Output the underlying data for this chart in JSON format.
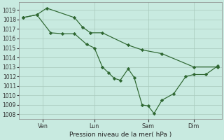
{
  "background_color": "#c8eae0",
  "grid_color": "#a8c8bc",
  "line_color": "#2d6630",
  "marker_color": "#2d6630",
  "xlabel_text": "Pression niveau de la mer( hPa )",
  "ylim": [
    1007.5,
    1019.8
  ],
  "yticks": [
    1008,
    1009,
    1010,
    1011,
    1012,
    1013,
    1014,
    1015,
    1016,
    1017,
    1018,
    1019
  ],
  "xtick_labels": [
    "Ven",
    "Lun",
    "Sam",
    "Dim"
  ],
  "xtick_positions": [
    0.12,
    0.38,
    0.65,
    0.88
  ],
  "series1_x": [
    0.02,
    0.09,
    0.14,
    0.28,
    0.32,
    0.36,
    0.42,
    0.55,
    0.62,
    0.72,
    0.88,
    1.0
  ],
  "series1_y": [
    1018.2,
    1018.5,
    1019.2,
    1018.2,
    1017.2,
    1016.6,
    1016.6,
    1015.3,
    1014.8,
    1014.4,
    1013.0,
    1013.0
  ],
  "series2_x": [
    0.02,
    0.09,
    0.16,
    0.22,
    0.28,
    0.34,
    0.38,
    0.42,
    0.45,
    0.48,
    0.51,
    0.55,
    0.58,
    0.62,
    0.65,
    0.68,
    0.72,
    0.78,
    0.84,
    0.88,
    0.94,
    1.0
  ],
  "series2_y": [
    1018.2,
    1018.5,
    1016.6,
    1016.5,
    1016.5,
    1015.4,
    1015.0,
    1013.0,
    1012.4,
    1011.8,
    1011.6,
    1012.8,
    1011.9,
    1009.0,
    1008.9,
    1008.1,
    1009.5,
    1010.2,
    1012.0,
    1012.2,
    1012.2,
    1013.1
  ]
}
